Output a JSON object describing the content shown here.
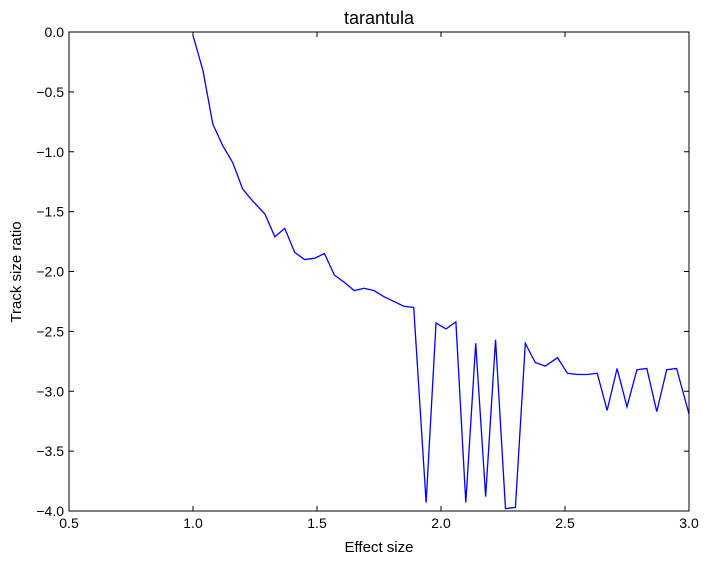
{
  "chart_data": {
    "type": "line",
    "title": "tarantula",
    "xlabel": "Effect size",
    "ylabel": "Track size ratio",
    "xlim": [
      0.5,
      3.0
    ],
    "ylim": [
      -4.0,
      0.0
    ],
    "xticks": [
      "0.5",
      "1.0",
      "1.5",
      "2.0",
      "2.5",
      "3.0"
    ],
    "yticks": [
      "0.0",
      "−0.5",
      "−1.0",
      "−1.5",
      "−2.0",
      "−2.5",
      "−3.0",
      "−3.5",
      "−4.0"
    ],
    "grid": false,
    "legend": null,
    "series": [
      {
        "color": "#0000ff",
        "x": [
          1.0,
          1.04,
          1.08,
          1.12,
          1.16,
          1.2,
          1.24,
          1.29,
          1.33,
          1.37,
          1.41,
          1.45,
          1.49,
          1.53,
          1.57,
          1.61,
          1.65,
          1.69,
          1.73,
          1.77,
          1.81,
          1.85,
          1.89,
          1.94,
          1.98,
          2.02,
          2.06,
          2.1,
          2.14,
          2.18,
          2.22,
          2.26,
          2.3,
          2.34,
          2.38,
          2.42,
          2.47,
          2.51,
          2.55,
          2.59,
          2.63,
          2.67,
          2.71,
          2.75,
          2.79,
          2.83,
          2.87,
          2.91,
          2.95,
          3.0
        ],
        "values": [
          -0.03,
          -0.32,
          -0.77,
          -0.95,
          -1.09,
          -1.31,
          -1.41,
          -1.52,
          -1.71,
          -1.64,
          -1.84,
          -1.9,
          -1.89,
          -1.85,
          -2.03,
          -2.09,
          -2.16,
          -2.14,
          -2.16,
          -2.21,
          -2.25,
          -2.29,
          -2.3,
          -3.93,
          -2.43,
          -2.48,
          -2.42,
          -3.93,
          -2.6,
          -3.88,
          -2.57,
          -3.98,
          -3.97,
          -2.6,
          -2.76,
          -2.79,
          -2.72,
          -2.85,
          -2.86,
          -2.86,
          -2.85,
          -3.16,
          -2.81,
          -3.13,
          -2.82,
          -2.81,
          -3.17,
          -2.82,
          -2.81,
          -3.19
        ]
      }
    ]
  }
}
